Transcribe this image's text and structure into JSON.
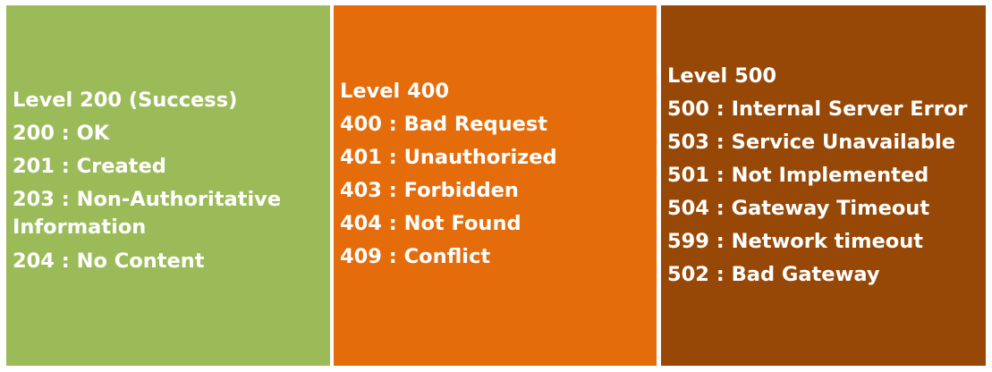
{
  "colors": {
    "green": "#9bbb59",
    "orange": "#e46c0a",
    "brown": "#974806"
  },
  "panels": [
    {
      "heading": "Level 200 (Success)",
      "items": [
        "200 : OK",
        "201 : Created",
        "203 : Non-Authoritative Information",
        "204 : No Content"
      ]
    },
    {
      "heading": "Level 400",
      "items": [
        "400 : Bad Request",
        "401 : Unauthorized",
        "403 : Forbidden",
        "404 : Not Found",
        "409 : Conflict"
      ]
    },
    {
      "heading": "Level 500",
      "items": [
        "500 : Internal Server Error",
        "503 : Service Unavailable",
        "501 : Not Implemented",
        "504 : Gateway Timeout",
        "599 : Network timeout",
        "502 : Bad Gateway"
      ]
    }
  ]
}
